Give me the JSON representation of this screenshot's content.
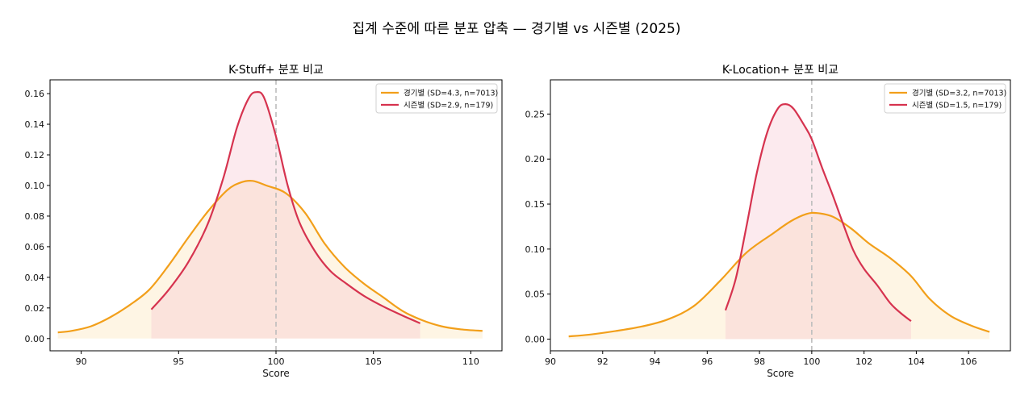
{
  "figure": {
    "suptitle": "집계 수준에 따른 분포 압축 — 경기별 vs 시즌별 (2025)"
  },
  "chart_data": [
    {
      "type": "area",
      "title": "K-Stuff+ 분포 비교",
      "xlabel": "Score",
      "ylabel": "",
      "xlim": [
        88.4,
        111.6
      ],
      "ylim": [
        -0.008,
        0.169
      ],
      "xticks": [
        "90",
        "95",
        "100",
        "105",
        "110"
      ],
      "yticks": [
        "0.00",
        "0.02",
        "0.04",
        "0.06",
        "0.08",
        "0.10",
        "0.12",
        "0.14",
        "0.16"
      ],
      "xtick_values": [
        90,
        95,
        100,
        105,
        110
      ],
      "ytick_values": [
        0,
        0.02,
        0.04,
        0.06,
        0.08,
        0.1,
        0.12,
        0.14,
        0.16
      ],
      "reference_line_x": 100,
      "grid": false,
      "legend_position": "top-right",
      "series": [
        {
          "name": "경기별 (SD=4.3, n=7013)",
          "color": "#f29f1a",
          "fill": "#fdf0d5",
          "x": [
            88.8,
            89.5,
            90.5,
            91.5,
            92.5,
            93.5,
            94.5,
            95.5,
            96.5,
            97.5,
            98.2,
            98.8,
            99.5,
            100.5,
            101.5,
            102.5,
            103.5,
            104.5,
            105.5,
            106.5,
            107.5,
            108.5,
            109.5,
            110.6
          ],
          "y": [
            0.004,
            0.005,
            0.008,
            0.014,
            0.022,
            0.032,
            0.048,
            0.066,
            0.083,
            0.097,
            0.102,
            0.103,
            0.1,
            0.095,
            0.082,
            0.062,
            0.047,
            0.036,
            0.027,
            0.018,
            0.012,
            0.008,
            0.006,
            0.005
          ]
        },
        {
          "name": "시즌별 (SD=2.9, n=179)",
          "color": "#d6334f",
          "fill": "#f5c4cd",
          "x": [
            93.6,
            94.5,
            95.5,
            96.5,
            97.3,
            98.0,
            98.6,
            99.0,
            99.4,
            100.0,
            100.6,
            101.2,
            102.0,
            102.8,
            103.6,
            104.5,
            105.5,
            106.5,
            107.4
          ],
          "y": [
            0.019,
            0.032,
            0.05,
            0.075,
            0.105,
            0.138,
            0.157,
            0.161,
            0.157,
            0.132,
            0.1,
            0.076,
            0.057,
            0.044,
            0.036,
            0.028,
            0.021,
            0.015,
            0.01
          ]
        }
      ]
    },
    {
      "type": "area",
      "title": "K-Location+ 분포 비교",
      "xlabel": "Score",
      "ylabel": "",
      "xlim": [
        90.0,
        107.6
      ],
      "ylim": [
        -0.013,
        0.288
      ],
      "xticks": [
        "90",
        "92",
        "94",
        "96",
        "98",
        "100",
        "102",
        "104",
        "106"
      ],
      "yticks": [
        "0.00",
        "0.05",
        "0.10",
        "0.15",
        "0.20",
        "0.25"
      ],
      "xtick_values": [
        90,
        92,
        94,
        96,
        98,
        100,
        102,
        104,
        106
      ],
      "ytick_values": [
        0,
        0.05,
        0.1,
        0.15,
        0.2,
        0.25
      ],
      "reference_line_x": 100,
      "grid": false,
      "legend_position": "top-right",
      "series": [
        {
          "name": "경기별 (SD=3.2, n=7013)",
          "color": "#f29f1a",
          "fill": "#fdf0d5",
          "x": [
            90.7,
            91.5,
            92.5,
            93.5,
            94.5,
            95.5,
            96.5,
            97.5,
            98.5,
            99.2,
            99.8,
            100.2,
            100.8,
            101.5,
            102.2,
            103.0,
            103.8,
            104.5,
            105.3,
            106.1,
            106.8
          ],
          "y": [
            0.003,
            0.005,
            0.009,
            0.014,
            0.022,
            0.037,
            0.065,
            0.096,
            0.117,
            0.131,
            0.139,
            0.14,
            0.136,
            0.123,
            0.106,
            0.09,
            0.07,
            0.045,
            0.026,
            0.015,
            0.008
          ]
        },
        {
          "name": "시즌별 (SD=1.5, n=179)",
          "color": "#d6334f",
          "fill": "#f5c4cd",
          "x": [
            96.7,
            97.1,
            97.5,
            97.9,
            98.3,
            98.7,
            99.0,
            99.3,
            99.7,
            100.0,
            100.4,
            100.8,
            101.2,
            101.6,
            102.0,
            102.5,
            103.0,
            103.4,
            103.8
          ],
          "y": [
            0.032,
            0.068,
            0.125,
            0.185,
            0.23,
            0.256,
            0.261,
            0.256,
            0.238,
            0.222,
            0.19,
            0.16,
            0.128,
            0.098,
            0.078,
            0.06,
            0.04,
            0.029,
            0.02
          ]
        }
      ]
    }
  ]
}
